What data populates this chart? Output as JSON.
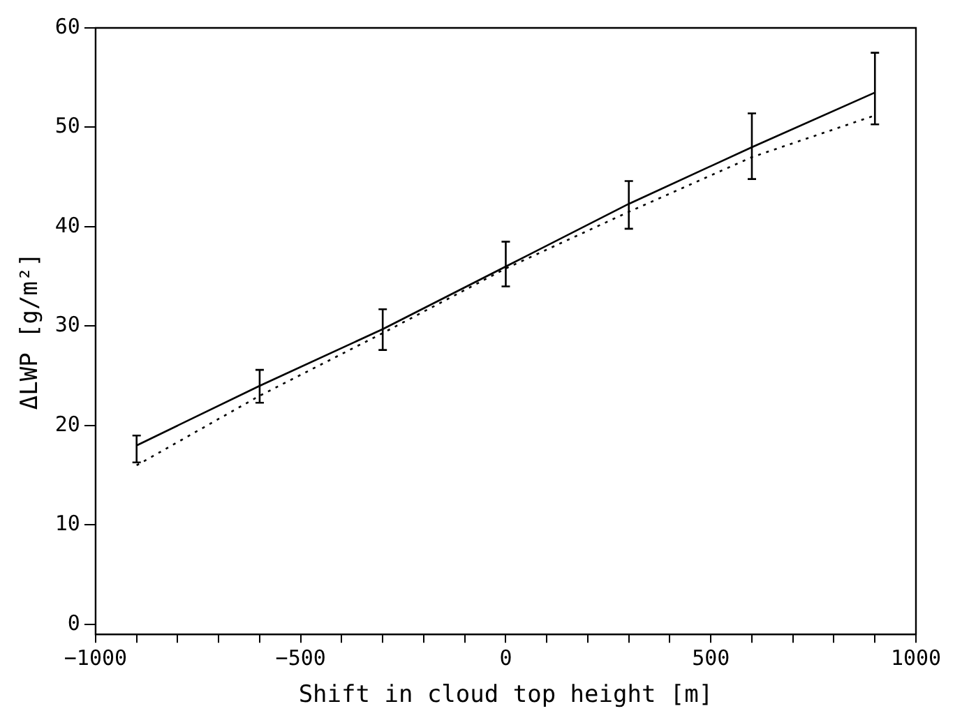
{
  "chart_data": {
    "type": "line",
    "xlabel": "Shift in cloud top height [m]",
    "ylabel": "ΔLWP [g/m²]",
    "x": [
      -900,
      -600,
      -300,
      0,
      300,
      600,
      900
    ],
    "series": [
      {
        "color": "#000000",
        "line_style": "solid",
        "values": [
          18,
          24,
          29.7,
          36,
          42.3,
          48,
          53.5
        ],
        "errors": [
          [
            16.3,
            19
          ],
          [
            22.3,
            25.6
          ],
          [
            27.6,
            31.7
          ],
          [
            34,
            38.5
          ],
          [
            39.8,
            44.6
          ],
          [
            44.8,
            51.4
          ],
          [
            50.3,
            57.5
          ]
        ]
      },
      {
        "color": "#000000",
        "line_style": "dotted",
        "values": [
          16,
          23,
          29.3,
          35.8,
          41.5,
          47,
          51.2
        ]
      }
    ],
    "xlim": [
      -1000,
      1000
    ],
    "ylim": [
      -1,
      60
    ],
    "xticks": [
      -1000,
      {
        "value": -900,
        "label": null
      },
      {
        "value": -800,
        "label": null
      },
      {
        "value": -700,
        "label": null
      },
      {
        "value": -600,
        "label": null
      },
      -500,
      {
        "value": -400,
        "label": null
      },
      {
        "value": -300,
        "label": null
      },
      {
        "value": -200,
        "label": null
      },
      {
        "value": -100,
        "label": null
      },
      0,
      {
        "value": 100,
        "label": null
      },
      {
        "value": 200,
        "label": null
      },
      {
        "value": 300,
        "label": null
      },
      {
        "value": 400,
        "label": null
      },
      500,
      {
        "value": 600,
        "label": null
      },
      {
        "value": 700,
        "label": null
      },
      {
        "value": 800,
        "label": null
      },
      {
        "value": 900,
        "label": null
      },
      1000
    ],
    "yticks": [
      0,
      10,
      20,
      30,
      40,
      50,
      60
    ],
    "marker": "none",
    "grid": false,
    "legend": false
  }
}
